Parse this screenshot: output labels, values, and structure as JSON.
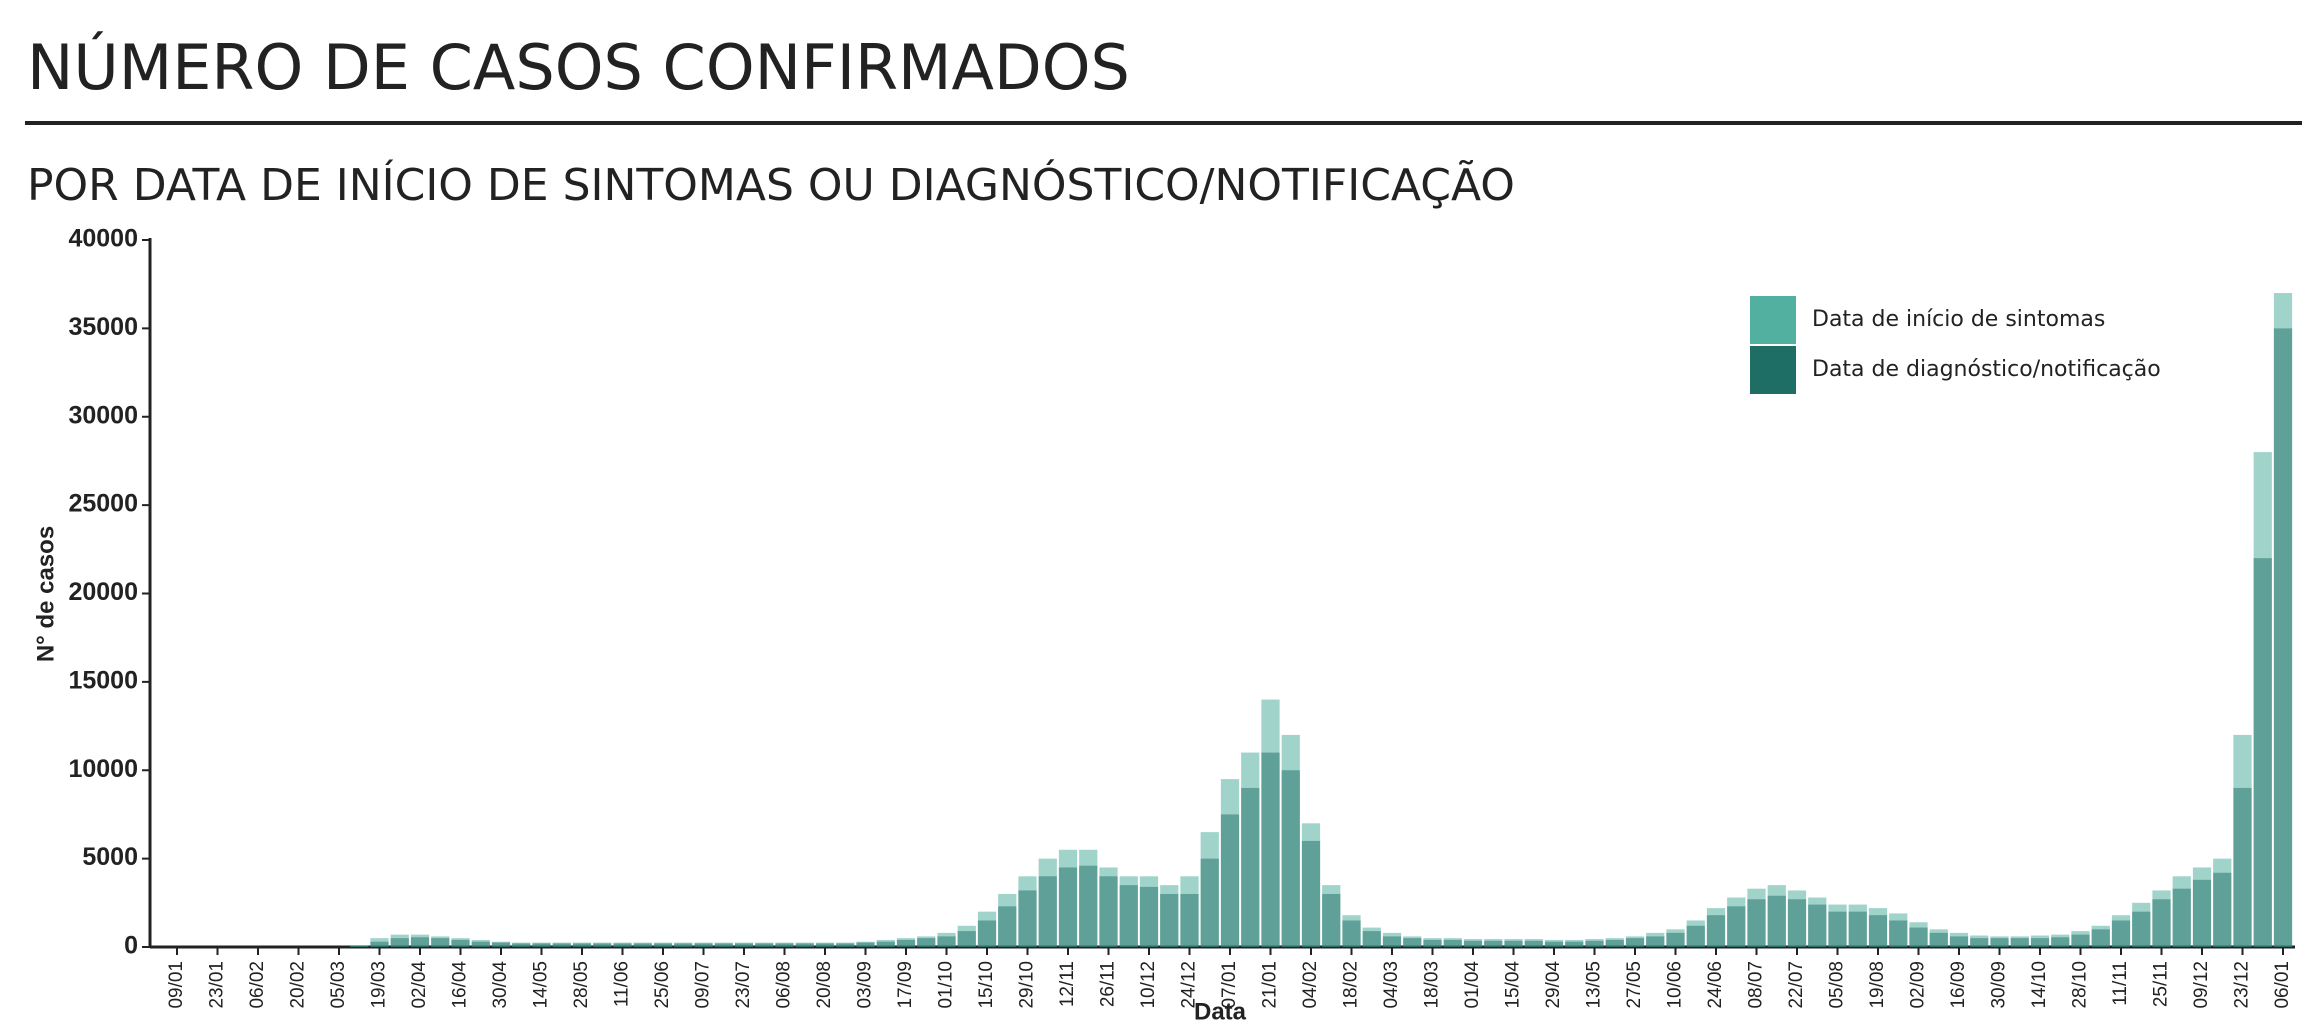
{
  "chart_data": {
    "type": "overlay-bar",
    "title": "NÚMERO DE CASOS CONFIRMADOS",
    "subtitle": "POR DATA DE INÍCIO DE SINTOMAS OU DIAGNÓSTICO/NOTIFICAÇÃO",
    "x_label": "Data",
    "y_label": "N° de casos",
    "categories": [
      "09/01",
      null,
      "23/01",
      null,
      "06/02",
      null,
      "20/02",
      null,
      "05/03",
      null,
      "19/03",
      null,
      "02/04",
      null,
      "16/04",
      null,
      "30/04",
      null,
      "14/05",
      null,
      "28/05",
      null,
      "11/06",
      null,
      "25/06",
      null,
      "09/07",
      null,
      "23/07",
      null,
      "06/08",
      null,
      "20/08",
      null,
      "03/09",
      null,
      "17/09",
      null,
      "01/10",
      null,
      "15/10",
      null,
      "29/10",
      null,
      "12/11",
      null,
      "26/11",
      null,
      "10/12",
      null,
      "24/12",
      null,
      "07/01",
      null,
      "21/01",
      null,
      "04/02",
      null,
      "18/02",
      null,
      "04/03",
      null,
      "18/03",
      null,
      "01/04",
      null,
      "15/04",
      null,
      "29/04",
      null,
      "13/05",
      null,
      "27/05",
      null,
      "10/06",
      null,
      "24/06",
      null,
      "08/07",
      null,
      "22/07",
      null,
      "05/08",
      null,
      "19/08",
      null,
      "02/09",
      null,
      "16/09",
      null,
      "30/09",
      null,
      "14/10",
      null,
      "28/10",
      null,
      "11/11",
      null,
      "25/11",
      null,
      "09/12",
      null,
      "23/12",
      null,
      "06/01"
    ],
    "series": [
      {
        "name": "Data de início de sintomas",
        "color": "#52b0a0",
        "values": [
          0,
          0,
          0,
          0,
          0,
          0,
          0,
          0,
          0,
          100,
          500,
          700,
          700,
          600,
          500,
          400,
          300,
          250,
          250,
          250,
          250,
          250,
          250,
          250,
          250,
          250,
          250,
          250,
          250,
          250,
          250,
          250,
          250,
          250,
          300,
          400,
          500,
          600,
          800,
          1200,
          2000,
          3000,
          4000,
          5000,
          5500,
          5500,
          4500,
          4000,
          4000,
          3500,
          4000,
          6500,
          9500,
          11000,
          14000,
          12000,
          7000,
          3500,
          1800,
          1100,
          800,
          600,
          500,
          500,
          450,
          450,
          450,
          450,
          400,
          400,
          450,
          500,
          600,
          800,
          1000,
          1500,
          2200,
          2800,
          3300,
          3500,
          3200,
          2800,
          2400,
          2400,
          2200,
          1900,
          1400,
          1000,
          800,
          650,
          600,
          600,
          650,
          700,
          900,
          1200,
          1800,
          2500,
          3200,
          4000,
          4500,
          5000,
          12000,
          28000,
          37000
        ]
      },
      {
        "name": "Data de diagnóstico/notificação",
        "color": "#1e6e66",
        "values": [
          0,
          0,
          0,
          0,
          0,
          0,
          0,
          0,
          0,
          50,
          300,
          500,
          550,
          500,
          400,
          300,
          250,
          200,
          200,
          200,
          200,
          200,
          200,
          200,
          200,
          200,
          200,
          200,
          200,
          200,
          200,
          200,
          200,
          200,
          250,
          300,
          400,
          500,
          600,
          900,
          1500,
          2300,
          3200,
          4000,
          4500,
          4600,
          4000,
          3500,
          3400,
          3000,
          3000,
          5000,
          7500,
          9000,
          11000,
          10000,
          6000,
          3000,
          1500,
          900,
          600,
          500,
          400,
          400,
          350,
          350,
          350,
          350,
          300,
          300,
          350,
          400,
          500,
          600,
          800,
          1200,
          1800,
          2300,
          2700,
          2900,
          2700,
          2400,
          2000,
          2000,
          1800,
          1500,
          1100,
          800,
          600,
          500,
          500,
          500,
          500,
          550,
          700,
          1000,
          1500,
          2000,
          2700,
          3300,
          3800,
          4200,
          9000,
          22000,
          35000
        ]
      }
    ],
    "ylim": [
      0,
      40000
    ],
    "yticks": [
      0,
      5000,
      10000,
      15000,
      20000,
      25000,
      30000,
      35000,
      40000
    ],
    "legend": "upper right"
  }
}
